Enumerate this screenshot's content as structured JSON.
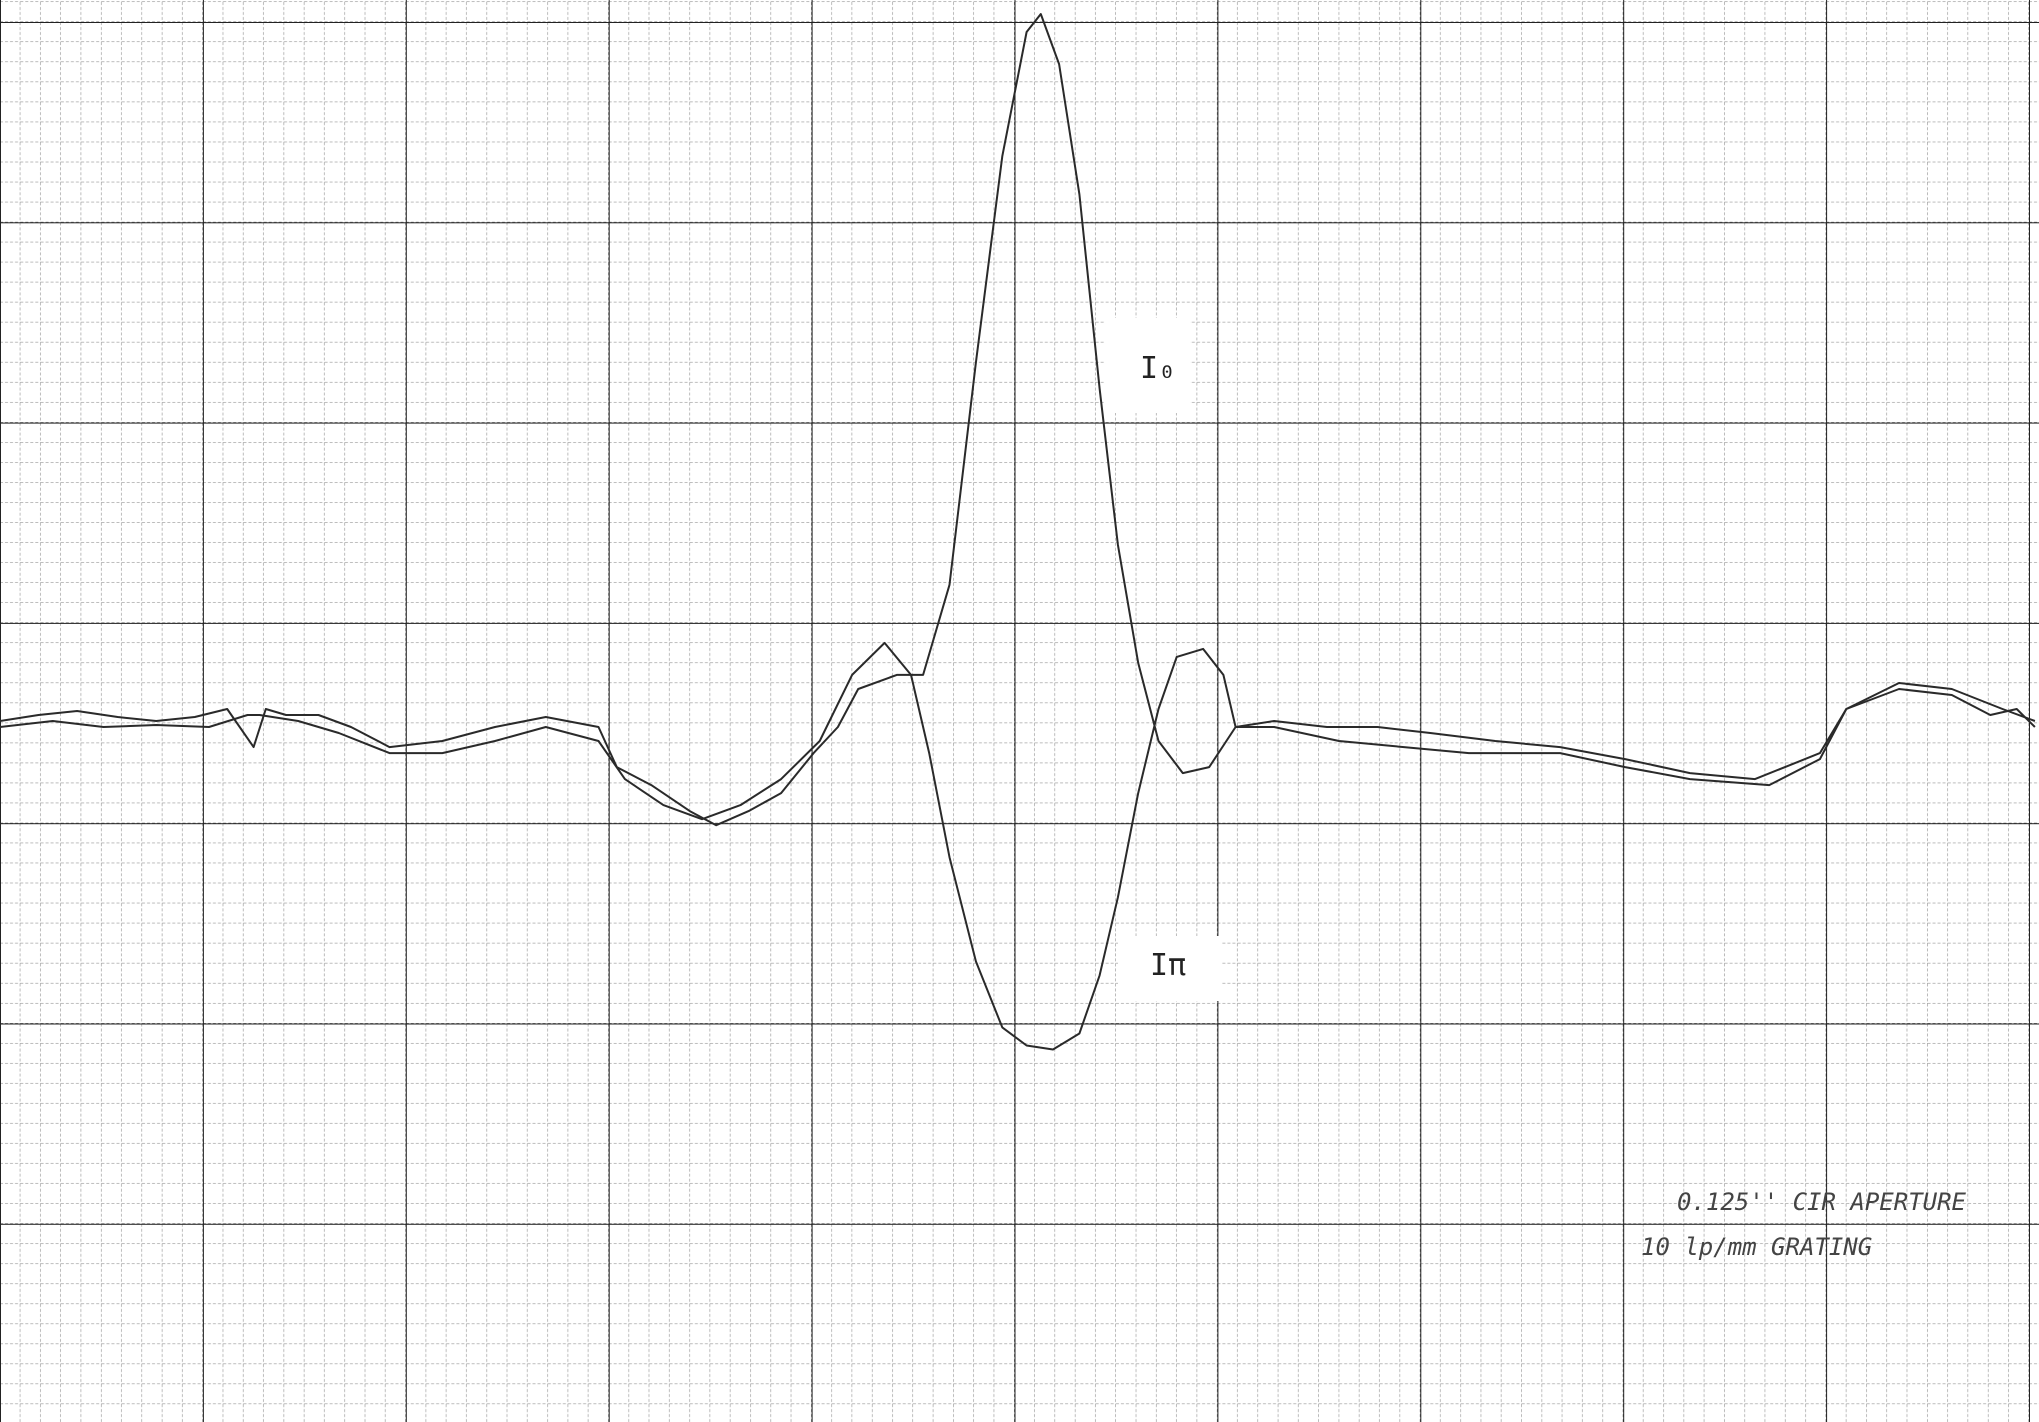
{
  "chart_data": {
    "type": "line",
    "xlim": [
      0,
      10.05
    ],
    "ylim": [
      0,
      7.1
    ],
    "grid": true,
    "series": [
      {
        "name": "I₀",
        "color": "#2a2a2a",
        "x": [
          0,
          0.19,
          0.38,
          0.58,
          0.77,
          0.96,
          1.12,
          1.25,
          1.31,
          1.41,
          1.57,
          1.73,
          1.92,
          2.18,
          2.44,
          2.69,
          2.95,
          3.04,
          3.21,
          3.4,
          3.53,
          3.69,
          3.85,
          4.01,
          4.13,
          4.23,
          4.42,
          4.55,
          4.68,
          4.81,
          4.94,
          5.06,
          5.13,
          5.22,
          5.32,
          5.42,
          5.51,
          5.61,
          5.71,
          5.83,
          5.96,
          6.09,
          6.28,
          6.54,
          6.79,
          7.05,
          7.37,
          7.69,
          8.01,
          8.33,
          8.65,
          8.97,
          9.1,
          9.36,
          9.62,
          9.81,
          9.94,
          10.03
        ],
        "values": [
          3.5,
          3.53,
          3.55,
          3.52,
          3.5,
          3.52,
          3.56,
          3.37,
          3.56,
          3.53,
          3.53,
          3.47,
          3.37,
          3.4,
          3.47,
          3.52,
          3.47,
          3.27,
          3.18,
          3.05,
          2.98,
          3.05,
          3.14,
          3.34,
          3.47,
          3.66,
          3.73,
          3.73,
          4.18,
          5.29,
          6.32,
          6.94,
          7.03,
          6.78,
          6.13,
          5.16,
          4.38,
          3.79,
          3.4,
          3.24,
          3.27,
          3.47,
          3.5,
          3.47,
          3.47,
          3.44,
          3.4,
          3.37,
          3.31,
          3.24,
          3.21,
          3.34,
          3.56,
          3.66,
          3.63,
          3.53,
          3.56,
          3.47
        ]
      },
      {
        "name": "Iπ",
        "color": "#2a2a2a",
        "x": [
          0,
          0.26,
          0.51,
          0.77,
          1.03,
          1.22,
          1.28,
          1.47,
          1.67,
          1.92,
          2.18,
          2.44,
          2.69,
          2.95,
          3.08,
          3.27,
          3.46,
          3.65,
          3.85,
          4.04,
          4.2,
          4.36,
          4.49,
          4.58,
          4.68,
          4.81,
          4.94,
          5.06,
          5.19,
          5.32,
          5.42,
          5.51,
          5.61,
          5.71,
          5.8,
          5.93,
          6.03,
          6.09,
          6.28,
          6.6,
          6.92,
          7.24,
          7.69,
          8.01,
          8.33,
          8.72,
          8.97,
          9.1,
          9.36,
          9.62,
          9.87,
          10.03
        ],
        "values": [
          3.47,
          3.5,
          3.47,
          3.48,
          3.47,
          3.53,
          3.53,
          3.5,
          3.44,
          3.34,
          3.34,
          3.4,
          3.47,
          3.4,
          3.21,
          3.08,
          3.01,
          3.08,
          3.21,
          3.4,
          3.73,
          3.89,
          3.73,
          3.34,
          2.82,
          2.3,
          1.97,
          1.88,
          1.86,
          1.94,
          2.23,
          2.62,
          3.14,
          3.56,
          3.82,
          3.86,
          3.73,
          3.47,
          3.47,
          3.4,
          3.37,
          3.34,
          3.34,
          3.27,
          3.21,
          3.18,
          3.31,
          3.56,
          3.69,
          3.66,
          3.56,
          3.5
        ]
      }
    ],
    "annotations": [
      "0.125'' CIR APERTURE",
      "10 lp/mm GRATING"
    ]
  }
}
